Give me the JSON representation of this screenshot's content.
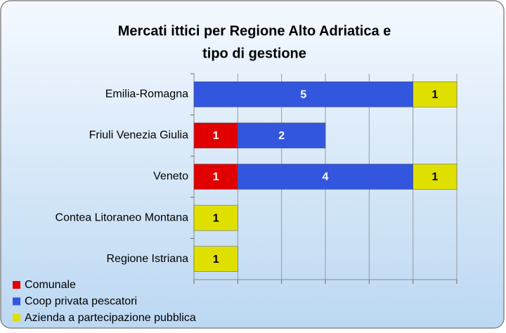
{
  "chart_data": {
    "type": "stacked-barh",
    "title": "Mercati ittici per Regione Alto Adriatica e",
    "subtitle": "tipo di gestione",
    "categories": [
      "Emilia-Romagna",
      "Friuli Venezia Giulia",
      "Veneto",
      "Contea Litoraneo Montana",
      "Regione Istriana"
    ],
    "series": [
      {
        "name": "Comunale",
        "color": "#e00000",
        "values": [
          null,
          1,
          1,
          null,
          null
        ]
      },
      {
        "name": "Coop privata pescatori",
        "color": "#3256dd",
        "values": [
          5,
          2,
          4,
          null,
          null
        ]
      },
      {
        "name": "Azienda a partecipazione pubblica",
        "color": "#e0e000",
        "values": [
          1,
          null,
          1,
          1,
          1
        ]
      }
    ],
    "xlim": [
      0,
      6
    ],
    "xticks": [
      0,
      1,
      2,
      3,
      4,
      5,
      6
    ],
    "grid": true,
    "legend": "bottom-left"
  }
}
